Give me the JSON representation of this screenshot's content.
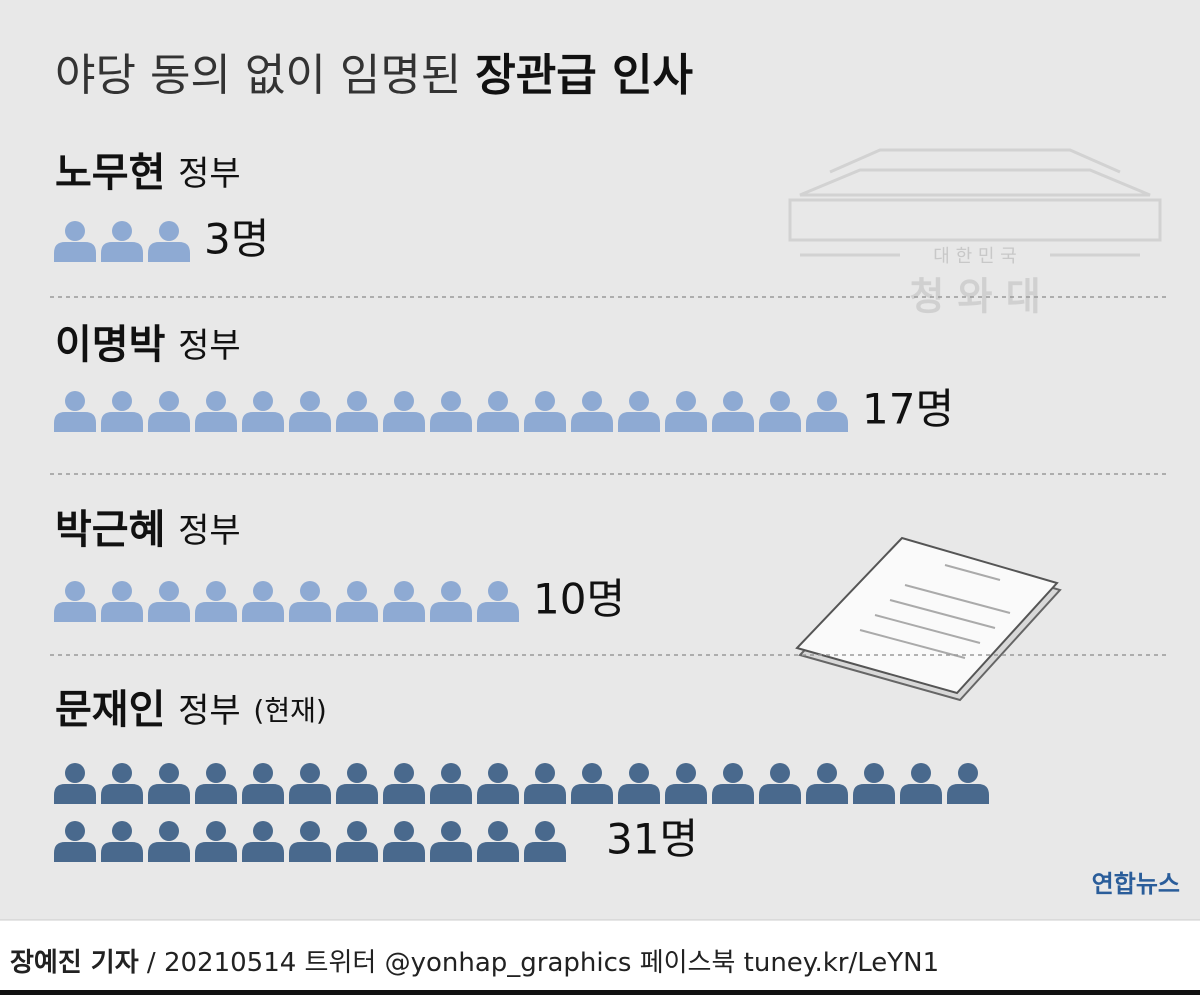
{
  "chart_data": {
    "type": "pictogram",
    "title": {
      "light": "야당 동의 없이 임명된",
      "bold": "장관급 인사"
    },
    "categories": [
      "노무현",
      "이명박",
      "박근혜",
      "문재인"
    ],
    "category_suffix": "정부",
    "current_note": "(현재)",
    "values": [
      3,
      17,
      10,
      31
    ],
    "value_labels": [
      "3명",
      "17명",
      "10명",
      "31명"
    ],
    "colors": [
      "#8eaad3",
      "#8eaad3",
      "#8eaad3",
      "#49698d"
    ],
    "icons_per_row": 20
  },
  "watermark": {
    "top": "대 한 민 국",
    "bottom": "청 와 대"
  },
  "logo": "연합뉴스",
  "footer": {
    "author": "장예진 기자",
    "rest": "/ 20210514 트위터 @yonhap_graphics  페이스북 tuney.kr/LeYN1"
  }
}
